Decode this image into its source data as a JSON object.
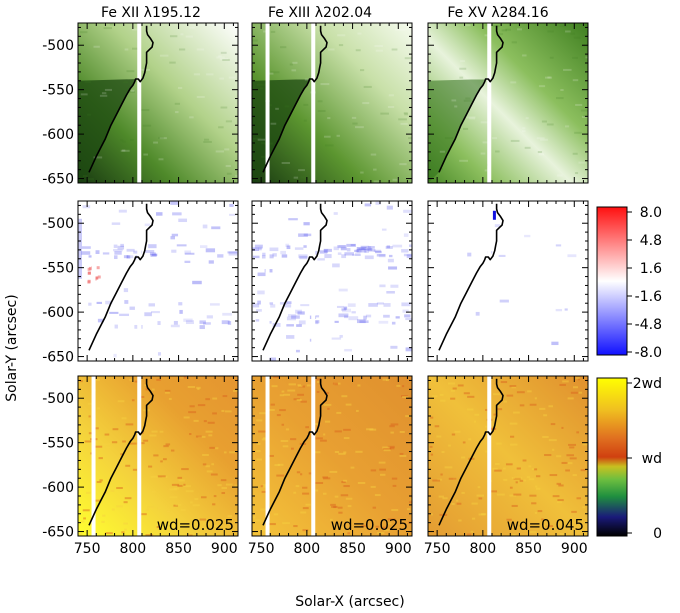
{
  "figure": {
    "xlabel": "Solar-X (arcsec)",
    "ylabel": "Solar-Y (arcsec)"
  },
  "chart_data": {
    "type": "heatmap",
    "xlim": [
      740,
      915
    ],
    "ylim": [
      -655,
      -475
    ],
    "x_ticks": [
      750,
      800,
      850,
      900
    ],
    "x_tick_labels": [
      "750",
      "800",
      "850",
      "900"
    ],
    "y_ticks": [
      -500,
      -550,
      -600,
      -650
    ],
    "y_tick_labels": [
      "-500",
      "-550",
      "-600",
      "-650"
    ],
    "columns": [
      {
        "title": "Fe XII λ195.12",
        "wd_label": "wd=0.025",
        "slit_x": [
          757,
          807
        ]
      },
      {
        "title": "Fe XIII λ202.04",
        "wd_label": "wd=0.025",
        "slit_x": [
          757,
          807
        ]
      },
      {
        "title": "Fe XV λ284.16",
        "wd_label": "wd=0.045",
        "slit_x": [
          807
        ]
      }
    ],
    "rows": [
      "intensity",
      "doppler_velocity",
      "line_width"
    ],
    "boundary_contour": [
      [
        752,
        -643
      ],
      [
        760,
        -625
      ],
      [
        770,
        -605
      ],
      [
        776,
        -590
      ],
      [
        782,
        -578
      ],
      [
        788,
        -566
      ],
      [
        793,
        -556
      ],
      [
        797,
        -549
      ],
      [
        800,
        -545
      ],
      [
        802,
        -541
      ],
      [
        803,
        -538
      ],
      [
        806,
        -538
      ],
      [
        808,
        -541
      ],
      [
        811,
        -537
      ],
      [
        813,
        -531
      ],
      [
        814,
        -525
      ],
      [
        815,
        -520
      ],
      [
        815,
        -514
      ],
      [
        815,
        -508
      ],
      [
        818,
        -505
      ],
      [
        821,
        -502
      ],
      [
        822,
        -497
      ],
      [
        819,
        -492
      ],
      [
        816,
        -488
      ],
      [
        815,
        -484
      ],
      [
        815,
        -478
      ]
    ],
    "colorbars": [
      {
        "name": "doppler",
        "ticks": [
          "8.0",
          "4.8",
          "1.6",
          "-1.6",
          "-4.8",
          "-8.0"
        ],
        "range": [
          -8.0,
          8.0
        ],
        "colors": [
          "#1010ff",
          "#ffffff",
          "#ff1010"
        ]
      },
      {
        "name": "width",
        "ticks": [
          "2wd",
          "wd",
          "0"
        ],
        "range": [
          0,
          2
        ],
        "colors": [
          "#000000",
          "#1a1a7a",
          "#1f8f3f",
          "#6fbf3f",
          "#c8c020",
          "#d04010",
          "#e07020",
          "#f0c020",
          "#ffff00"
        ]
      }
    ]
  }
}
